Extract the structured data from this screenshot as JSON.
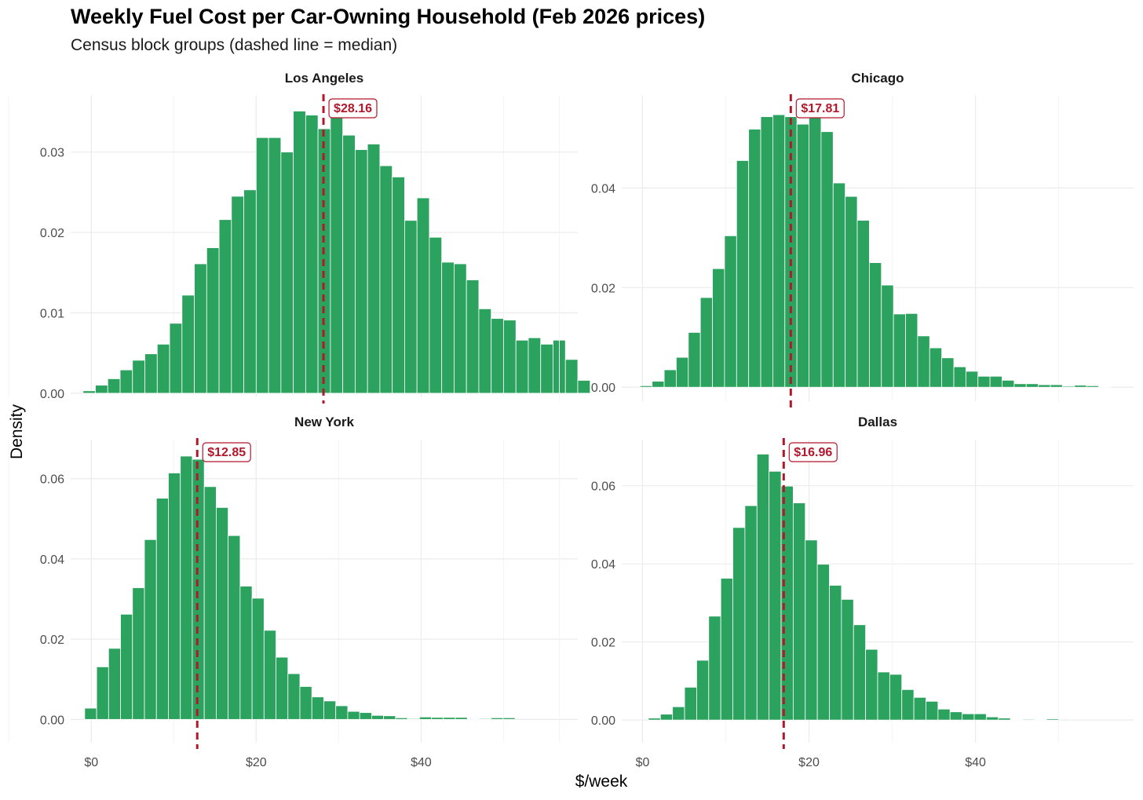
{
  "title": "Weekly Fuel Cost per Car-Owning Household (Feb 2026 prices)",
  "subtitle": "Census block groups (dashed line = median)",
  "xlabel": "$/week",
  "ylabel": "Density",
  "colors": {
    "bar": "#2ca25f",
    "median": "#b2182b",
    "grid": "#ebebeb",
    "tick_text": "#4d4d4d"
  },
  "chart_data": [
    {
      "type": "bar",
      "panel": "Los Angeles",
      "title": "Los Angeles",
      "bin_start": -1,
      "bin_width": 1.5,
      "values": [
        0.0003,
        0.001,
        0.0018,
        0.0029,
        0.0041,
        0.0049,
        0.0061,
        0.0087,
        0.0122,
        0.0161,
        0.0181,
        0.0216,
        0.0245,
        0.0253,
        0.0318,
        0.0318,
        0.03,
        0.0351,
        0.0346,
        0.0329,
        0.0351,
        0.0321,
        0.0303,
        0.031,
        0.0283,
        0.0269,
        0.0215,
        0.0243,
        0.0194,
        0.0163,
        0.0161,
        0.0141,
        0.0105,
        0.0093,
        0.0091,
        0.0066,
        0.0069,
        0.0061,
        0.0066,
        0.0042,
        0.0016
      ],
      "median": 28.16,
      "median_label": "$28.16",
      "xlim": [
        -2.5,
        59
      ],
      "ylim": [
        -0.0005,
        0.037
      ],
      "yticks": [
        0,
        0.01,
        0.02,
        0.03
      ],
      "ytick_labels": [
        "0.00",
        "0.01",
        "0.02",
        "0.03"
      ],
      "xticks": [
        0,
        20,
        40
      ],
      "xtick_labels": [
        "$0",
        "$20",
        "$40"
      ],
      "show_xtick_labels": false
    },
    {
      "type": "bar",
      "panel": "Chicago",
      "title": "Chicago",
      "bin_start": -0.3,
      "bin_width": 1.45,
      "values": [
        0.0003,
        0.0012,
        0.0035,
        0.006,
        0.011,
        0.018,
        0.0238,
        0.0304,
        0.0455,
        0.0518,
        0.0543,
        0.0547,
        0.0543,
        0.0528,
        0.0562,
        0.0513,
        0.041,
        0.0383,
        0.0335,
        0.025,
        0.0205,
        0.0147,
        0.0148,
        0.0103,
        0.0079,
        0.0059,
        0.0041,
        0.0032,
        0.0022,
        0.0022,
        0.0014,
        0.0007,
        0.0007,
        0.0005,
        0.0005,
        0.0002,
        0.0004,
        0.0003,
        0.0001
      ],
      "median": 17.81,
      "median_label": "$17.81",
      "xlim": [
        -2.5,
        59
      ],
      "ylim": [
        -0.0028,
        0.0585
      ],
      "yticks": [
        0,
        0.02,
        0.04
      ],
      "ytick_labels": [
        "0.00",
        "0.02",
        "0.04"
      ],
      "xticks": [
        0,
        20,
        40
      ],
      "xtick_labels": [
        "$0",
        "$20",
        "$40"
      ],
      "show_xtick_labels": false
    },
    {
      "type": "bar",
      "panel": "New York",
      "title": "New York",
      "bin_start": -0.8,
      "bin_width": 1.45,
      "values": [
        0.0028,
        0.0131,
        0.0177,
        0.0262,
        0.0328,
        0.0448,
        0.0551,
        0.0614,
        0.0656,
        0.0648,
        0.058,
        0.0528,
        0.0458,
        0.0332,
        0.0302,
        0.0222,
        0.0155,
        0.0114,
        0.0082,
        0.0056,
        0.0046,
        0.0034,
        0.002,
        0.0017,
        0.001,
        0.0009,
        0.0004,
        0.0002,
        0.0006,
        0.0005,
        0.0005,
        0.0005,
        0.0001,
        0.0002,
        0.0004,
        0.0004
      ],
      "median": 12.85,
      "median_label": "$12.85",
      "xlim": [
        -2.5,
        59
      ],
      "ylim": [
        -0.0058,
        0.0697
      ],
      "yticks": [
        0,
        0.02,
        0.04,
        0.06
      ],
      "ytick_labels": [
        "0.00",
        "0.02",
        "0.04",
        "0.06"
      ],
      "xticks": [
        0,
        20,
        40
      ],
      "xtick_labels": [
        "$0",
        "$20",
        "$40"
      ],
      "show_xtick_labels": true
    },
    {
      "type": "bar",
      "panel": "Dallas",
      "title": "Dallas",
      "bin_start": 0.7,
      "bin_width": 1.45,
      "values": [
        0.0005,
        0.0015,
        0.0034,
        0.0084,
        0.0153,
        0.0266,
        0.0363,
        0.0493,
        0.0549,
        0.0681,
        0.0637,
        0.0599,
        0.0556,
        0.0461,
        0.0399,
        0.0345,
        0.0309,
        0.0244,
        0.0181,
        0.0123,
        0.0117,
        0.0078,
        0.0058,
        0.0048,
        0.0028,
        0.0021,
        0.0016,
        0.0016,
        0.0008,
        0.0005,
        0.0001,
        0.0002,
        0.0001,
        0.0003
      ],
      "median": 16.96,
      "median_label": "$16.96",
      "xlim": [
        -2.5,
        59
      ],
      "ylim": [
        -0.0058,
        0.0718
      ],
      "yticks": [
        0,
        0.02,
        0.04,
        0.06
      ],
      "ytick_labels": [
        "0.00",
        "0.02",
        "0.04",
        "0.06"
      ],
      "xticks": [
        0,
        20,
        40
      ],
      "xtick_labels": [
        "$0",
        "$20",
        "$40"
      ],
      "show_xtick_labels": true
    }
  ]
}
